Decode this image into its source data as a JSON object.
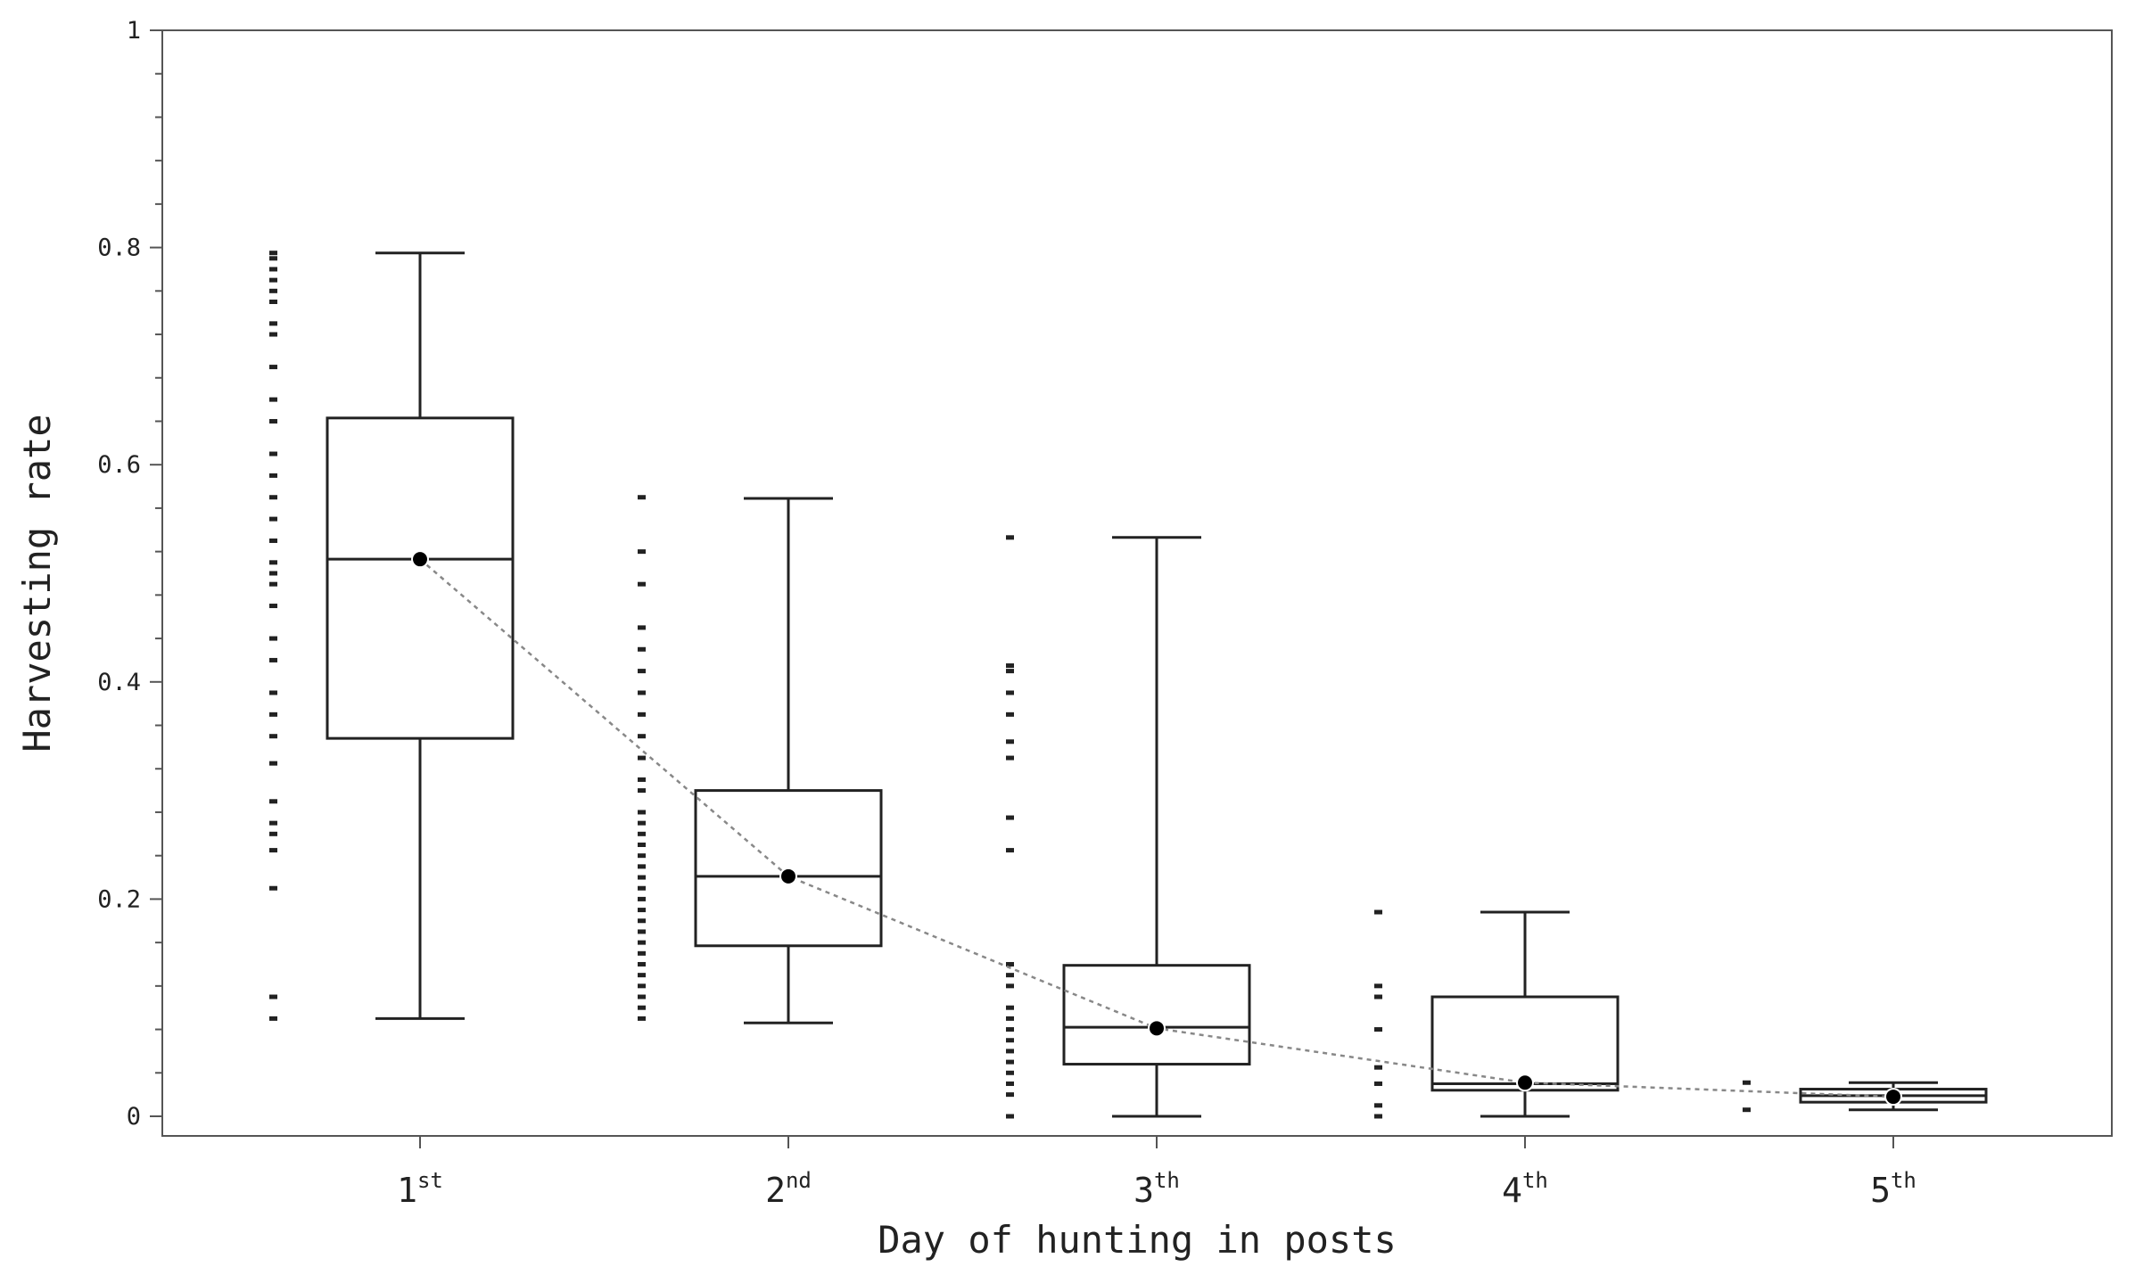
{
  "chart_data": {
    "type": "box",
    "xlabel": "Day of hunting in posts",
    "ylabel": "Harvesting rate",
    "ylim": [
      0,
      1
    ],
    "yticks": [
      {
        "value": 0,
        "label": "0"
      },
      {
        "value": 0.2,
        "label": "0.2"
      },
      {
        "value": 0.4,
        "label": "0.4"
      },
      {
        "value": 0.6,
        "label": "0.6"
      },
      {
        "value": 0.8,
        "label": "0.8"
      },
      {
        "value": 1,
        "label": "1"
      }
    ],
    "categories": [
      {
        "num": "1",
        "sup": "st"
      },
      {
        "num": "2",
        "sup": "nd"
      },
      {
        "num": "3",
        "sup": "th"
      },
      {
        "num": "4",
        "sup": "th"
      },
      {
        "num": "5",
        "sup": "th"
      }
    ],
    "boxes": [
      {
        "min": 0.09,
        "q1": 0.348,
        "median": 0.513,
        "q3": 0.643,
        "max": 0.795,
        "mean": 0.513
      },
      {
        "min": 0.086,
        "q1": 0.157,
        "median": 0.221,
        "q3": 0.3,
        "max": 0.569,
        "mean": 0.221
      },
      {
        "min": 0.0,
        "q1": 0.048,
        "median": 0.082,
        "q3": 0.139,
        "max": 0.533,
        "mean": 0.081
      },
      {
        "min": 0.0,
        "q1": 0.024,
        "median": 0.03,
        "q3": 0.11,
        "max": 0.188,
        "mean": 0.031
      },
      {
        "min": 0.006,
        "q1": 0.013,
        "median": 0.019,
        "q3": 0.025,
        "max": 0.031,
        "mean": 0.018
      }
    ],
    "raw_points": [
      [
        0.09,
        0.11,
        0.21,
        0.245,
        0.26,
        0.27,
        0.29,
        0.325,
        0.35,
        0.37,
        0.39,
        0.42,
        0.44,
        0.47,
        0.49,
        0.5,
        0.51,
        0.53,
        0.55,
        0.57,
        0.59,
        0.61,
        0.64,
        0.66,
        0.69,
        0.72,
        0.73,
        0.75,
        0.76,
        0.77,
        0.78,
        0.79,
        0.795
      ],
      [
        0.09,
        0.1,
        0.11,
        0.12,
        0.13,
        0.14,
        0.15,
        0.16,
        0.17,
        0.18,
        0.19,
        0.2,
        0.21,
        0.22,
        0.23,
        0.24,
        0.25,
        0.26,
        0.27,
        0.28,
        0.3,
        0.31,
        0.33,
        0.35,
        0.37,
        0.39,
        0.41,
        0.43,
        0.45,
        0.49,
        0.52,
        0.57
      ],
      [
        0.0,
        0.02,
        0.03,
        0.04,
        0.05,
        0.06,
        0.07,
        0.08,
        0.09,
        0.1,
        0.12,
        0.13,
        0.14,
        0.245,
        0.275,
        0.33,
        0.345,
        0.37,
        0.39,
        0.41,
        0.415,
        0.533
      ],
      [
        0.0,
        0.01,
        0.03,
        0.045,
        0.08,
        0.11,
        0.12,
        0.188
      ],
      [
        0.006,
        0.031
      ]
    ],
    "mean_line": "dotted"
  }
}
